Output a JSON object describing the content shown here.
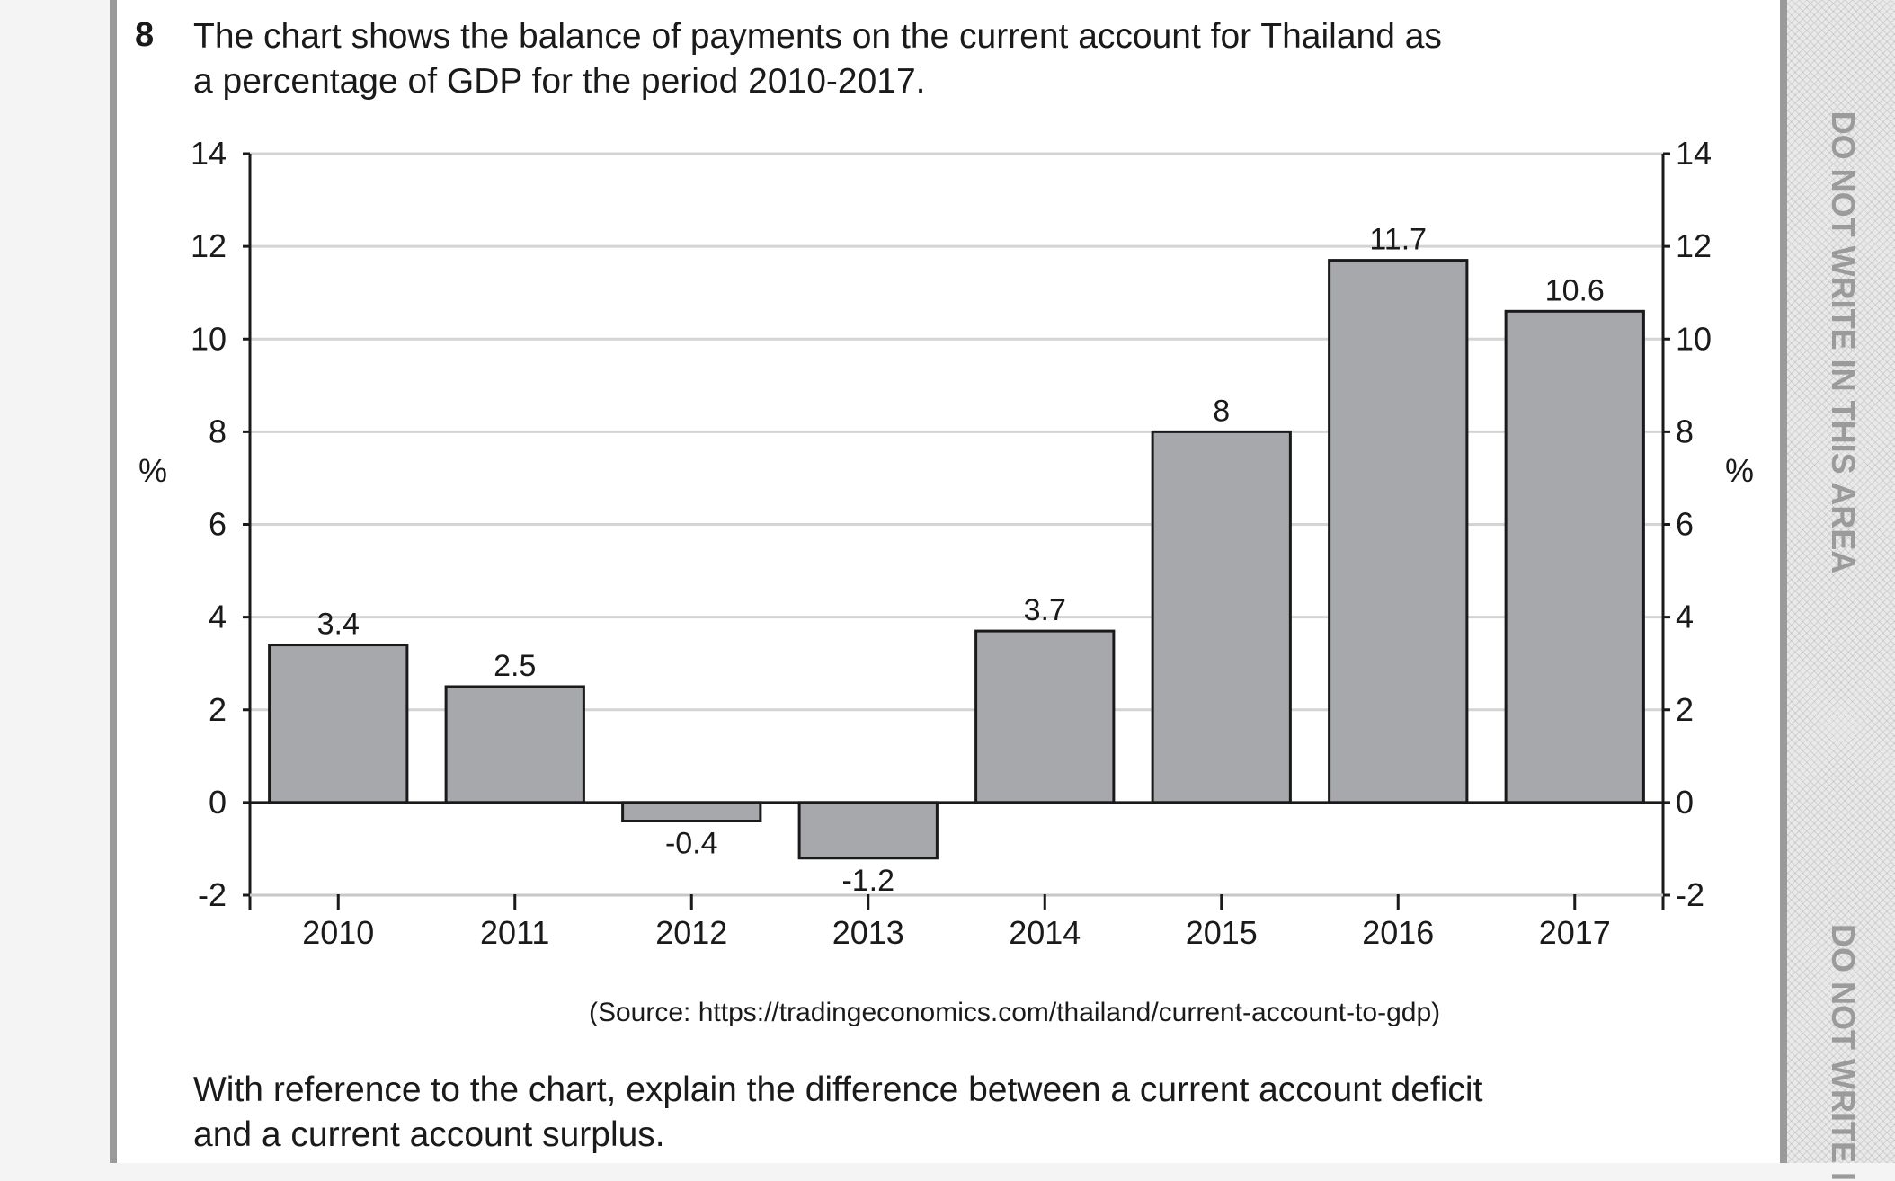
{
  "question": {
    "number": "8",
    "line1": "The chart shows the balance of payments on the current account for Thailand as",
    "line2": "a percentage of GDP for the period 2010-2017."
  },
  "margin": {
    "text_top": "DO NOT WRITE IN THIS AREA",
    "text_bottom": "DO NOT WRITE I"
  },
  "source": "(Source: https://tradingeconomics.com/thailand/current-account-to-gdp)",
  "prompt": {
    "line1": "With reference to the chart, explain the difference between a current account deficit",
    "line2": "and a current account surplus."
  },
  "chart_data": {
    "type": "bar",
    "categories": [
      "2010",
      "2011",
      "2012",
      "2013",
      "2014",
      "2015",
      "2016",
      "2017"
    ],
    "values": [
      3.4,
      2.5,
      -0.4,
      -1.2,
      3.7,
      8,
      11.7,
      10.6
    ],
    "data_labels": [
      "3.4",
      "2.5",
      "-0.4",
      "-1.2",
      "3.7",
      "8",
      "11.7",
      "10.6"
    ],
    "ylabel_left": "%",
    "ylabel_right": "%",
    "ylim": [
      -2,
      14
    ],
    "yticks": [
      14,
      12,
      10,
      8,
      6,
      4,
      2,
      0,
      -2
    ],
    "grid": true,
    "bar_color": "#a7a8ab"
  }
}
